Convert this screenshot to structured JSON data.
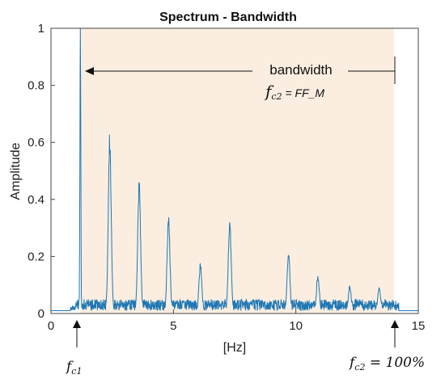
{
  "chart_data": {
    "type": "line",
    "title": "Spectrum - Bandwidth",
    "xlabel": "[Hz]",
    "ylabel": "Amplitude",
    "xlim": [
      0,
      15
    ],
    "ylim": [
      0,
      1
    ],
    "xticks": [
      "0",
      "5",
      "10",
      "15"
    ],
    "yticks": [
      "0",
      "0.2",
      "0.4",
      "0.6",
      "0.8",
      "1"
    ],
    "grid": false,
    "band": {
      "from": 1.2,
      "to": 14.0,
      "color": "#fbeee0"
    },
    "series": [
      {
        "color": "#1f77b4",
        "noise_range": [
          0.01,
          0.05
        ],
        "baseline_below_band": 0.01,
        "peaks": [
          {
            "x": 1.2,
            "y": 1.0
          },
          {
            "x": 2.4,
            "y": 0.65
          },
          {
            "x": 3.6,
            "y": 0.47
          },
          {
            "x": 4.8,
            "y": 0.35
          },
          {
            "x": 6.1,
            "y": 0.18
          },
          {
            "x": 7.3,
            "y": 0.34
          },
          {
            "x": 9.7,
            "y": 0.22
          },
          {
            "x": 10.9,
            "y": 0.14
          },
          {
            "x": 12.2,
            "y": 0.1
          },
          {
            "x": 13.4,
            "y": 0.1
          }
        ]
      }
    ],
    "annotations": {
      "bandwidth_label": "bandwidth",
      "fc2_formula": "fc2 = FF_M",
      "fc1_label": "fc1",
      "fc2_label": "fc2 = 100%"
    }
  }
}
